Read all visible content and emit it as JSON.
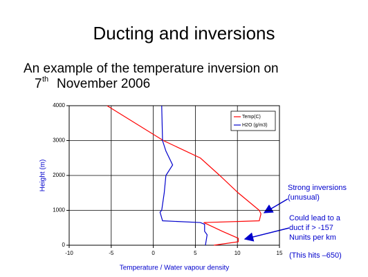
{
  "title": "Ducting and inversions",
  "subtitle": {
    "line1": "An example of the temperature inversion on",
    "day": "7",
    "suffix": "th",
    "rest": "November 2006"
  },
  "chart_data": {
    "type": "line",
    "xlabel": "Temperature / Water vapour density",
    "ylabel": "Height (m)",
    "xlim": [
      -10,
      15
    ],
    "xticks": [
      -10,
      -5,
      0,
      5,
      10,
      15
    ],
    "ylim": [
      0,
      4000
    ],
    "yticks": [
      0,
      1000,
      2000,
      3000,
      4000
    ],
    "grid": true,
    "legend": "upper right",
    "series": [
      {
        "name": "Temp(C)",
        "color": "#ff0000",
        "x": [
          -5.5,
          1.2,
          5.6,
          7.9,
          10.1,
          12.6,
          12.8,
          12.6,
          6.0,
          8.2,
          10.1,
          10.1,
          7.2
        ],
        "y": [
          4000,
          3000,
          2500,
          2000,
          1500,
          1000,
          900,
          700,
          650,
          400,
          200,
          100,
          0
        ]
      },
      {
        "name": "H2O (g/m3)",
        "color": "#0000cc",
        "x": [
          1.0,
          1.1,
          1.5,
          2.3,
          1.5,
          1.3,
          1.0,
          0.8,
          1.1,
          5.6,
          6.1,
          6.1,
          6.4,
          6.2
        ],
        "y": [
          4000,
          3000,
          2700,
          2300,
          2000,
          1500,
          1000,
          950,
          700,
          650,
          600,
          400,
          300,
          0
        ]
      }
    ],
    "annotations": [
      [
        "Strong inversions",
        "(unusual)"
      ],
      [
        "Could lead to a",
        "duct if > -157",
        "Nunits per km"
      ],
      [
        "(This hits –650)"
      ]
    ]
  }
}
